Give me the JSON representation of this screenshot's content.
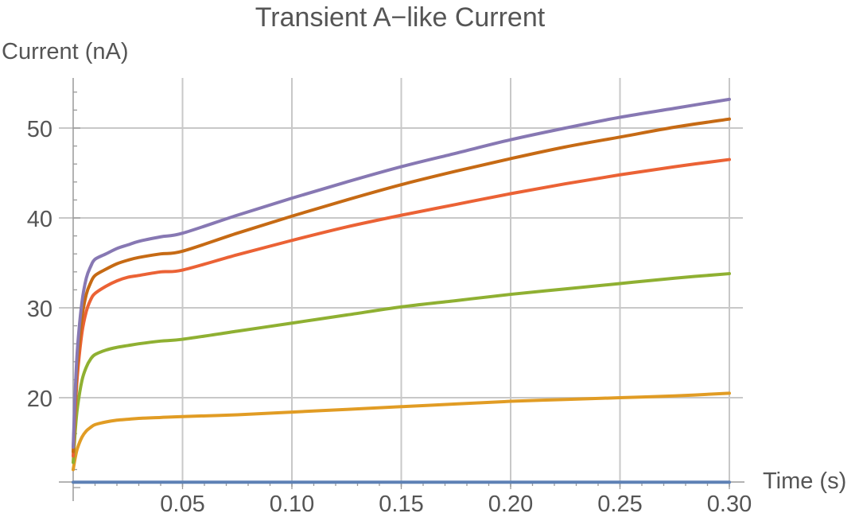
{
  "chart_data": {
    "type": "line",
    "title": "Transient A−like Current",
    "xlabel": "Time (s)",
    "ylabel": "Current (nA)",
    "xlim": [
      0,
      0.3
    ],
    "ylim": [
      9.5,
      55
    ],
    "x_ticks": [
      0.05,
      0.1,
      0.15,
      0.2,
      0.25,
      0.3
    ],
    "x_tick_labels": [
      "0.05",
      "0.10",
      "0.15",
      "0.20",
      "0.25",
      "0.30"
    ],
    "y_ticks": [
      20,
      30,
      40,
      50
    ],
    "y_tick_labels": [
      "20",
      "30",
      "40",
      "50"
    ],
    "grid": true,
    "legend": false,
    "x": [
      0,
      0.001,
      0.002,
      0.004,
      0.006,
      0.008,
      0.01,
      0.015,
      0.02,
      0.025,
      0.03,
      0.04,
      0.05,
      0.075,
      0.1,
      0.125,
      0.15,
      0.175,
      0.2,
      0.225,
      0.25,
      0.275,
      0.3
    ],
    "series": [
      {
        "color": "#5e81b5",
        "values": [
          10.6,
          10.6,
          10.6,
          10.6,
          10.6,
          10.6,
          10.6,
          10.6,
          10.6,
          10.6,
          10.6,
          10.6,
          10.6,
          10.6,
          10.6,
          10.6,
          10.6,
          10.6,
          10.6,
          10.6,
          10.6,
          10.6,
          10.6
        ]
      },
      {
        "color": "#e19c24",
        "values": [
          12.0,
          13.4,
          14.4,
          15.6,
          16.3,
          16.7,
          17.0,
          17.3,
          17.5,
          17.6,
          17.7,
          17.8,
          17.9,
          18.1,
          18.4,
          18.7,
          19.0,
          19.3,
          19.6,
          19.8,
          20.0,
          20.2,
          20.5
        ]
      },
      {
        "color": "#8fb032",
        "values": [
          12.8,
          16.5,
          19.0,
          21.9,
          23.4,
          24.3,
          24.8,
          25.3,
          25.6,
          25.8,
          26.0,
          26.3,
          26.5,
          27.4,
          28.3,
          29.2,
          30.1,
          30.8,
          31.5,
          32.1,
          32.7,
          33.3,
          33.8
        ]
      },
      {
        "color": "#eb6235",
        "values": [
          13.5,
          18.9,
          22.7,
          27.2,
          29.6,
          30.9,
          31.6,
          32.4,
          33.0,
          33.4,
          33.6,
          34.0,
          34.2,
          35.9,
          37.5,
          39.0,
          40.3,
          41.5,
          42.7,
          43.8,
          44.8,
          45.7,
          46.5
        ]
      },
      {
        "color": "#c66a14",
        "values": [
          14.0,
          19.8,
          24.0,
          28.9,
          31.5,
          32.8,
          33.6,
          34.3,
          34.9,
          35.3,
          35.6,
          36.0,
          36.3,
          38.3,
          40.2,
          42.0,
          43.7,
          45.2,
          46.6,
          47.9,
          49.0,
          50.1,
          51.0
        ]
      },
      {
        "color": "#8778b3",
        "values": [
          14.5,
          21.0,
          25.6,
          30.6,
          33.3,
          34.6,
          35.4,
          36.0,
          36.6,
          37.0,
          37.4,
          37.9,
          38.3,
          40.3,
          42.2,
          44.0,
          45.7,
          47.2,
          48.7,
          50.0,
          51.2,
          52.2,
          53.2
        ]
      }
    ]
  }
}
